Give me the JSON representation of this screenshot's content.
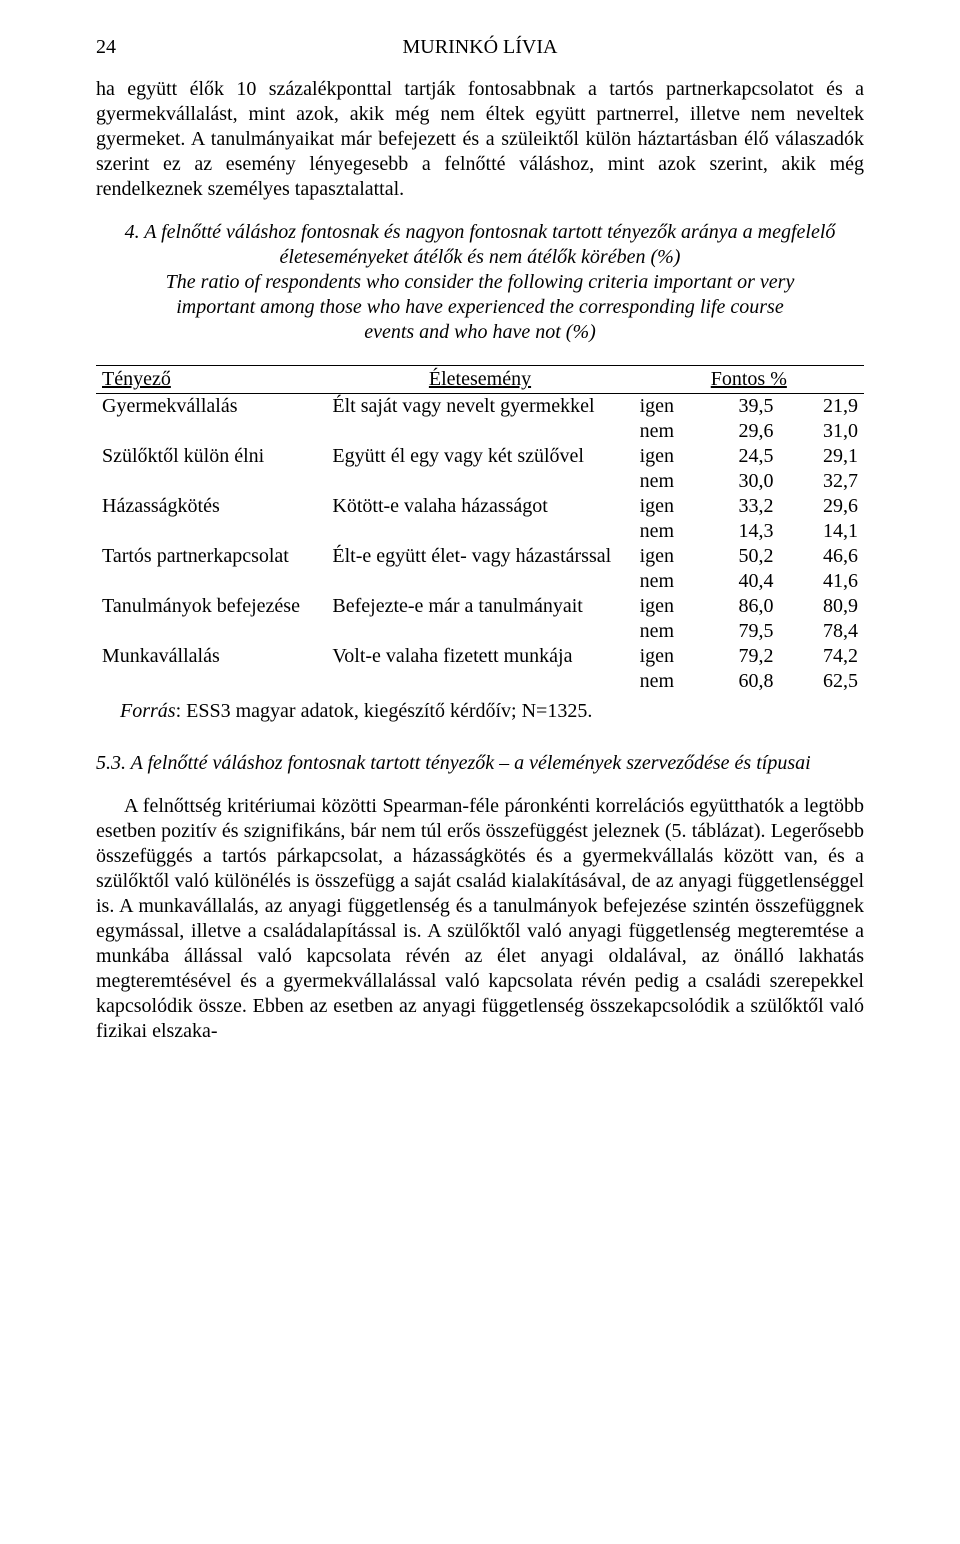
{
  "page_number": "24",
  "running_head": "MURINKÓ LÍVIA",
  "para1": "ha együtt élők 10 százalékponttal tartják fontosabbnak a tartós partnerkapcsolatot és a gyermekvállalást, mint azok, akik még nem éltek együtt partnerrel, illetve nem neveltek gyermeket. A tanulmányaikat már befejezett és a szüleiktől külön háztartásban élő válaszadók szerint ez az esemény lényegesebb a felnőtté váláshoz, mint azok szerint, akik még rendelkeznek személyes tapasztalattal.",
  "caption_num": "4. ",
  "caption_hu": "A felnőtté váláshoz fontosnak és nagyon fontosnak tartott tényezők aránya a megfelelő életeseményeket átélők és nem átélők körében (%)",
  "caption_en_line1": "The ratio of respondents who consider the following criteria important or very",
  "caption_en_line2": "important among those who have experienced the corresponding life course",
  "caption_en_line3": "events and who have not (%)",
  "table": {
    "head_factor": "Tényező",
    "head_event": "Életesemény",
    "head_pct": "Fontos %",
    "rows": [
      {
        "factor": "Gyermekvállalás",
        "event": "Élt saját vagy nevelt gyermekkel",
        "yes_label": "igen",
        "yes_a": "39,5",
        "yes_b": "21,9",
        "no_label": "nem",
        "no_a": "29,6",
        "no_b": "31,0"
      },
      {
        "factor": "Szülőktől külön élni",
        "event": "Együtt él egy vagy két szülővel",
        "yes_label": "igen",
        "yes_a": "24,5",
        "yes_b": "29,1",
        "no_label": "nem",
        "no_a": "30,0",
        "no_b": "32,7"
      },
      {
        "factor": "Házasságkötés",
        "event": "Kötött-e valaha házasságot",
        "yes_label": "igen",
        "yes_a": "33,2",
        "yes_b": "29,6",
        "no_label": "nem",
        "no_a": "14,3",
        "no_b": "14,1"
      },
      {
        "factor": "Tartós partnerkapcsolat",
        "event": "Élt-e együtt élet- vagy házastárssal",
        "yes_label": "igen",
        "yes_a": "50,2",
        "yes_b": "46,6",
        "no_label": "nem",
        "no_a": "40,4",
        "no_b": "41,6"
      },
      {
        "factor": "Tanulmányok befejezése",
        "event": "Befejezte-e már a tanulmányait",
        "yes_label": "igen",
        "yes_a": "86,0",
        "yes_b": "80,9",
        "no_label": "nem",
        "no_a": "79,5",
        "no_b": "78,4"
      },
      {
        "factor": "Munkavállalás",
        "event": "Volt-e valaha fizetett munkája",
        "yes_label": "igen",
        "yes_a": "79,2",
        "yes_b": "74,2",
        "no_label": "nem",
        "no_a": "60,8",
        "no_b": "62,5"
      }
    ]
  },
  "source_label": "Forrás",
  "source_text": ": ESS3 magyar adatok, kiegészítő kérdőív; N=1325.",
  "subhead_num": "5.3. ",
  "subhead_text": "A felnőtté váláshoz fontosnak tartott tényezők – a vélemények szerveződése és típusai",
  "para2": "A felnőttség kritériumai közötti Spearman-féle páronkénti korrelációs együtthatók a legtöbb esetben pozitív és szignifikáns, bár nem túl erős összefüggést jeleznek (5. táblázat). Legerősebb összefüggés a tartós párkapcsolat, a házasságkötés és a gyermekvállalás között van, és a szülőktől való különélés is összefügg a saját család kialakításával, de az anyagi függetlenséggel is. A munkavállalás, az anyagi függetlenség és a tanulmányok befejezése szintén összefüggnek egymással, illetve a családalapítással is. A szülőktől való anyagi függetlenség megteremtése a munkába állással való kapcsolata révén az élet anyagi oldalával, az önálló lakhatás megteremtésével és a gyermekvállalással való kapcsolata révén pedig a családi szerepekkel kapcsolódik össze. Ebben az esetben az anyagi függetlenség összekapcsolódik a szülőktől való fizikai elszaka-"
}
